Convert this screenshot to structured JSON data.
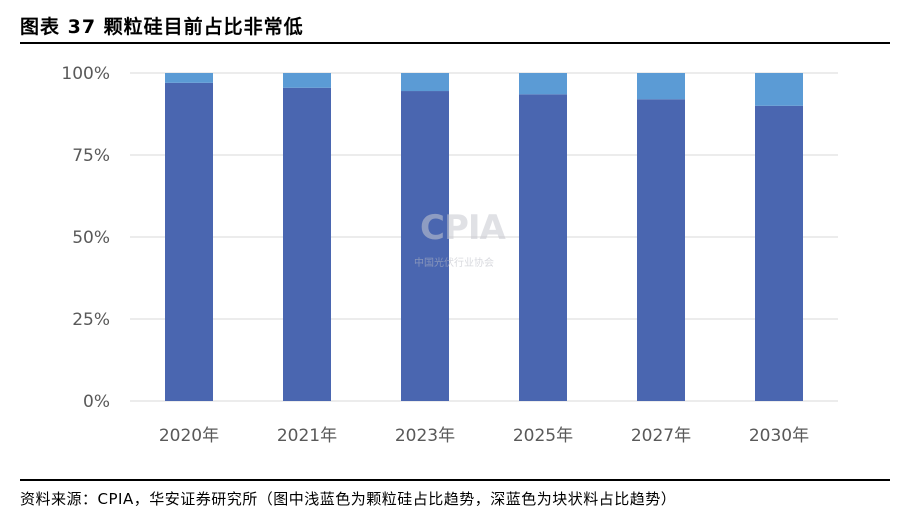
{
  "figure": {
    "title": "图表 37 颗粒硅目前占比非常低",
    "source": "资料来源：CPIA，华安证券研究所（图中浅蓝色为颗粒硅占比趋势，深蓝色为块状料占比趋势）"
  },
  "watermark": {
    "main": "CPIA",
    "sub": "中国光伏行业协会"
  },
  "colors": {
    "granular_light_blue": "#5b9bd5",
    "block_dark_blue": "#4a66b0",
    "grid": "#d9d9d9",
    "axis_text": "#595959"
  },
  "chart_data": {
    "type": "bar",
    "stacked": true,
    "categories": [
      "2020年",
      "2021年",
      "2023年",
      "2025年",
      "2027年",
      "2030年"
    ],
    "series": [
      {
        "values": [
          97,
          95.5,
          94.5,
          93.5,
          92,
          90
        ]
      },
      {
        "values": [
          3,
          4.5,
          5.5,
          6.5,
          8,
          10
        ]
      }
    ],
    "ylim": [
      0,
      100
    ],
    "yticks": [
      "0%",
      "25%",
      "50%",
      "75%",
      "100%"
    ],
    "grid": true,
    "legend": "none",
    "xlabel": "",
    "ylabel": ""
  }
}
